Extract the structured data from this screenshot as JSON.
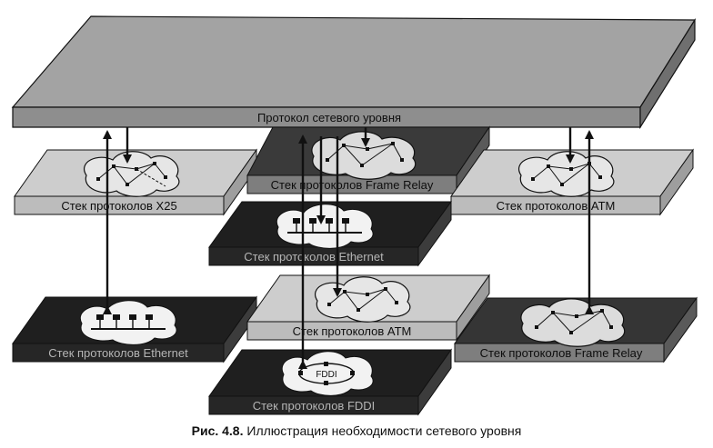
{
  "top_plate": {
    "label": "Протокол сетевого уровня"
  },
  "stacks": [
    {
      "id": "x25",
      "label": "Стек протоколов X25"
    },
    {
      "id": "frame-relay-top",
      "label": "Стек протоколов Frame Relay"
    },
    {
      "id": "atm-top",
      "label": "Стек протоколов ATM"
    },
    {
      "id": "ethernet-mid",
      "label": "Стек протоколов Ethernet"
    },
    {
      "id": "ethernet-bottom",
      "label": "Стек протоколов Ethernet"
    },
    {
      "id": "atm-bottom",
      "label": "Стек протоколов ATM"
    },
    {
      "id": "frame-relay-bottom",
      "label": "Стек протоколов Frame Relay"
    },
    {
      "id": "fddi",
      "label": "Стек протоколов FDDI"
    }
  ],
  "fddi_cloud_text": "FDDI",
  "caption": {
    "number": "Рис. 4.8.",
    "text": " Иллюстрация необходимости сетевого уровня"
  },
  "colors": {
    "top_plate": "#9c9c9c",
    "light_plate": "#c9c9c9",
    "dark_plate": "#2a2a2a",
    "line": "#111111"
  }
}
